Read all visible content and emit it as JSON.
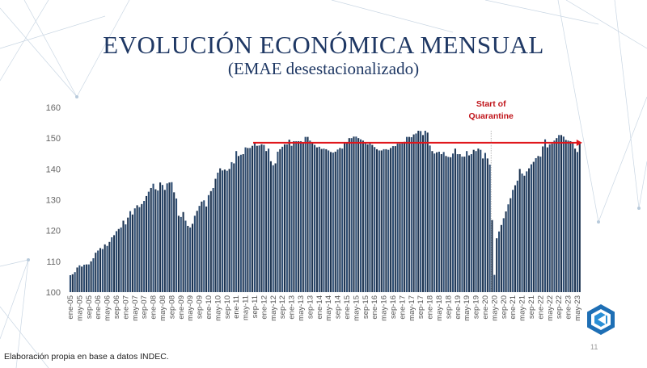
{
  "slide": {
    "title": "EVOLUCIÓN ECONÓMICA MENSUAL",
    "subtitle": "(EMAE desestacionalizado)",
    "footer": "Elaboración propia en base a datos INDEC.",
    "page_number": "11"
  },
  "chart_data": {
    "type": "bar",
    "title": "EVOLUCIÓN ECONÓMICA MENSUAL",
    "subtitle": "(EMAE desestacionalizado)",
    "xlabel": "",
    "ylabel": "",
    "ylim": [
      100,
      160
    ],
    "y_ticks": [
      100,
      110,
      120,
      130,
      140,
      150,
      160
    ],
    "first_month": "ene-05",
    "x_labels": [
      "ene-05",
      "may-05",
      "sep-05",
      "ene-06",
      "may-06",
      "sep-06",
      "ene-07",
      "may-07",
      "sep-07",
      "ene-08",
      "may-08",
      "sep-08",
      "ene-09",
      "may-09",
      "sep-09",
      "ene-10",
      "may-10",
      "sep-10",
      "ene-11",
      "may-11",
      "sep-11",
      "ene-12",
      "may-12",
      "sep-12",
      "ene-13",
      "may-13",
      "sep-13",
      "ene-14",
      "may-14",
      "sep-14",
      "ene-15",
      "may-15",
      "sep-15",
      "ene-16",
      "may-16",
      "sep-16",
      "ene-17",
      "may-17",
      "sep-17",
      "ene-18",
      "may-18",
      "sep-18",
      "ene-19",
      "may-19",
      "sep-19",
      "ene-20",
      "may-20",
      "sep-20",
      "ene-21",
      "may-21",
      "sep-21",
      "ene-22",
      "may-22",
      "sep-22",
      "ene-23",
      "may-23"
    ],
    "values": [
      105.5,
      105.8,
      106.5,
      108,
      108.7,
      108.3,
      108.9,
      109,
      109,
      110,
      111,
      112.8,
      113.5,
      114.3,
      114,
      115.5,
      115,
      116.3,
      117.8,
      118.5,
      119.8,
      120.5,
      121,
      123.2,
      122,
      124.2,
      126.3,
      125.2,
      127.2,
      128.2,
      127.6,
      128.6,
      129.6,
      131.2,
      132.6,
      133.8,
      135.2,
      133.4,
      133,
      135.6,
      134.8,
      133.2,
      135.3,
      135.6,
      135.7,
      132.4,
      130.4,
      124.8,
      124.4,
      126,
      123.2,
      121.5,
      121,
      122.2,
      124.8,
      126.4,
      128,
      129.4,
      129.8,
      127.8,
      131.5,
      132.8,
      133.8,
      136.8,
      138.8,
      140.2,
      139.5,
      139.8,
      139.4,
      140,
      142.2,
      141.8,
      145.8,
      144.2,
      144.6,
      144.8,
      147,
      146.8,
      146.8,
      147.5,
      148.4,
      147.5,
      147.6,
      148,
      147.8,
      145.8,
      146.6,
      142.5,
      141.2,
      141.8,
      145.6,
      146.4,
      147.2,
      148,
      148,
      149.5,
      147.5,
      149,
      149,
      149,
      149,
      148.5,
      150.4,
      150.4,
      149.2,
      148.5,
      147.8,
      147,
      147.2,
      146.5,
      146.6,
      146.4,
      146,
      145.5,
      145.3,
      145.6,
      146.3,
      146.8,
      146.6,
      148.6,
      148.4,
      150,
      150,
      150.5,
      150.5,
      150,
      149.6,
      149.2,
      148.6,
      148,
      148.6,
      147.8,
      147.1,
      146.4,
      146,
      146,
      146.4,
      146.4,
      146.2,
      146.8,
      147.4,
      147.4,
      148.2,
      148.2,
      148.6,
      148.8,
      150.4,
      150.4,
      150.3,
      151.2,
      151.5,
      152.4,
      152.3,
      151,
      152.4,
      151.8,
      147.6,
      145.8,
      145,
      145.4,
      145.6,
      144.8,
      145.5,
      144.2,
      143.9,
      143.8,
      145,
      146.6,
      144.8,
      144.8,
      144,
      144,
      145.8,
      144.4,
      144.8,
      146.2,
      145.8,
      146.6,
      146.2,
      143.4,
      145.2,
      143.4,
      141.4,
      123.4,
      105.6,
      117.5,
      119.7,
      121.8,
      124,
      126.2,
      128.5,
      130.5,
      133.2,
      134.7,
      136.2,
      140,
      138.5,
      137.8,
      139.2,
      140.2,
      141.5,
      142.3,
      143.5,
      144.2,
      144,
      147.3,
      149.6,
      147,
      148,
      148.2,
      149.2,
      150,
      151,
      151,
      150.5,
      149.4,
      149.2,
      149,
      148.6,
      146.6,
      145.5,
      148.4
    ],
    "reference_line": {
      "value": 148.5,
      "from": "sep-11",
      "to": "jun-23",
      "color": "#e0161b"
    },
    "annotation": {
      "text_line1": "Start of",
      "text_line2": "Quarantine",
      "at": "mar-20",
      "color": "#c0141a"
    },
    "bar_color": "#2e4d72",
    "grid": false,
    "legend": "none"
  }
}
